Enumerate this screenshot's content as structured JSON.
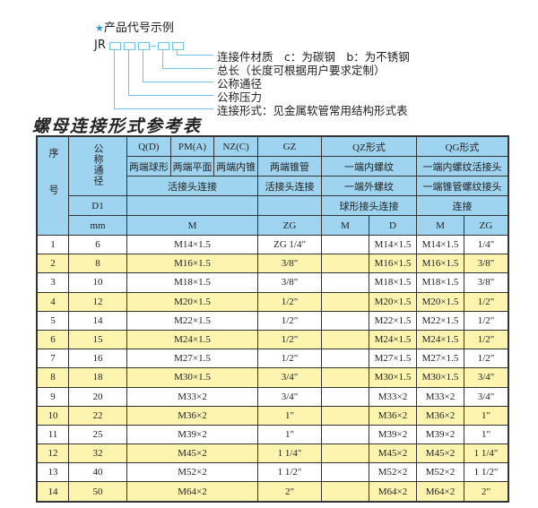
{
  "example": {
    "title": "产品代号示例",
    "star_icon": "star-icon",
    "code_prefix": "JR",
    "dash": "-",
    "labels": [
      "连接件材质　c：为碳钢　b：为不锈钢",
      "总长（长度可根据用户要求定制）",
      "公称通径",
      "公称压力",
      "连接形式：见金属软管常用结构形式表"
    ]
  },
  "table_title": "螺母连接形式参考表",
  "header": {
    "seq": "序号",
    "dn": "公称通径",
    "d1": "D1",
    "mm": "mm",
    "types": [
      "Q(D)",
      "PM(A)",
      "NZ(C)",
      "GZ",
      "QZ形式",
      "QG形式"
    ],
    "shapes": [
      "两端球形",
      "两端平面",
      "两端内锥",
      "两端锥管",
      "一端内螺纹",
      "一端内螺纹活接头"
    ],
    "conn1": "活接头连接",
    "conn2": "活接头连接",
    "conn3": "一端外螺纹",
    "conn4": "一端锥管螺纹接头",
    "conn5": "球形接头连接",
    "conn6": "连接",
    "units": [
      "M",
      "ZG",
      "M",
      "D",
      "M",
      "ZG"
    ]
  },
  "colors": {
    "header_bg": "#9fd4f0",
    "row_alt": "#fdf4b0",
    "line": "#6cc3e6"
  },
  "rows": [
    [
      "1",
      "6",
      "M14×1.5",
      "ZG 1/4\"",
      "",
      "M14×1.5",
      "M14×1.5",
      "1/4\""
    ],
    [
      "2",
      "8",
      "M16×1.5",
      "3/8\"",
      "",
      "M16×1.5",
      "M16×1.5",
      "3/8\""
    ],
    [
      "3",
      "10",
      "M18×1.5",
      "3/8\"",
      "",
      "M18×1.5",
      "M18×1.5",
      "3/8\""
    ],
    [
      "4",
      "12",
      "M20×1.5",
      "1/2\"",
      "",
      "M20×1.5",
      "M20×1.5",
      "1/2\""
    ],
    [
      "5",
      "14",
      "M22×1.5",
      "1/2\"",
      "",
      "M22×1.5",
      "M22×1.5",
      "1/2\""
    ],
    [
      "6",
      "15",
      "M24×1.5",
      "1/2\"",
      "",
      "M24×1.5",
      "M24×1.5",
      "1/2\""
    ],
    [
      "7",
      "16",
      "M27×1.5",
      "1/2\"",
      "",
      "M27×1.5",
      "M27×1.5",
      "1/2\""
    ],
    [
      "8",
      "18",
      "M30×1.5",
      "3/4\"",
      "",
      "M30×1.5",
      "M30×1.5",
      "3/4\""
    ],
    [
      "9",
      "20",
      "M33×2",
      "3/4\"",
      "",
      "M33×2",
      "M33×2",
      "3/4\""
    ],
    [
      "10",
      "22",
      "M36×2",
      "1\"",
      "",
      "M36×2",
      "M36×2",
      "1\""
    ],
    [
      "11",
      "25",
      "M39×2",
      "1\"",
      "",
      "M39×2",
      "M39×2",
      "1\""
    ],
    [
      "12",
      "32",
      "M45×2",
      "1 1/4\"",
      "",
      "M45×2",
      "M45×2",
      "1 1/4\""
    ],
    [
      "13",
      "40",
      "M52×2",
      "1 1/2\"",
      "",
      "M52×2",
      "M52×2",
      "1 1/2\""
    ],
    [
      "14",
      "50",
      "M64×2",
      "2\"",
      "",
      "M64×2",
      "M64×2",
      "2\""
    ]
  ]
}
